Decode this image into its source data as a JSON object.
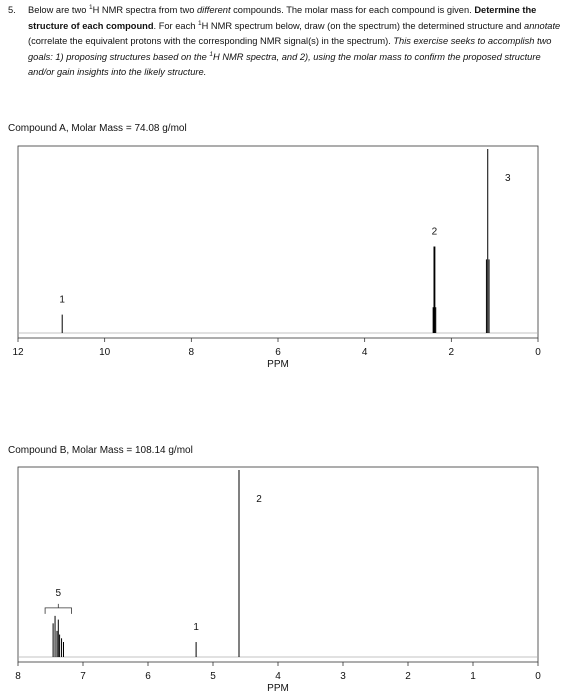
{
  "question": {
    "number": "5.",
    "parts": [
      "Below are two ",
      "1",
      "H NMR spectra from two ",
      "different",
      " compounds. The molar mass for each compound is given. ",
      "Determine the structure of each compound",
      ". For each ",
      "1",
      "H NMR spectrum below, draw (on the spectrum) the determined structure and ",
      "annotate",
      " (correlate the equivalent protons with the corresponding NMR signal(s) in the spectrum). ",
      "This exercise seeks to accomplish two goals: 1) proposing structures based on the ",
      "1",
      "H NMR spectra, and 2), using the molar mass to confirm the proposed structure and/or gain insights into the likely structure."
    ]
  },
  "chart_data": [
    {
      "type": "spectrum",
      "title": "Compound A, Molar Mass = 74.08 g/mol",
      "x_label": "PPM",
      "xlim": [
        12,
        0
      ],
      "xticks": [
        12,
        10,
        8,
        6,
        4,
        2,
        0
      ],
      "ylim": [
        0,
        100
      ],
      "color": "#000000",
      "signals": [
        {
          "label": "1",
          "ppm": [
            10.98
          ],
          "heights": [
            10
          ]
        },
        {
          "label": "2",
          "ppm": [
            2.42,
            2.4,
            2.38,
            2.36
          ],
          "heights": [
            14,
            47,
            47,
            14
          ]
        },
        {
          "label": "3",
          "ppm": [
            1.19,
            1.16,
            1.13
          ],
          "heights": [
            40,
            100,
            40
          ]
        }
      ]
    },
    {
      "type": "spectrum",
      "title": "Compound B, Molar Mass = 108.14 g/mol",
      "x_label": "PPM",
      "xlim": [
        8,
        0
      ],
      "xticks": [
        8,
        7,
        6,
        5,
        4,
        3,
        2,
        1,
        0
      ],
      "ylim": [
        0,
        100
      ],
      "color": "#000000",
      "signals": [
        {
          "label": "5",
          "ppm": [
            7.46,
            7.43,
            7.4,
            7.38,
            7.36,
            7.33,
            7.3
          ],
          "heights": [
            18,
            22,
            14,
            20,
            12,
            10,
            8
          ]
        },
        {
          "label": "1",
          "ppm": [
            5.26
          ],
          "heights": [
            8
          ]
        },
        {
          "label": "2",
          "ppm": [
            4.6
          ],
          "heights": [
            100
          ]
        }
      ]
    }
  ]
}
